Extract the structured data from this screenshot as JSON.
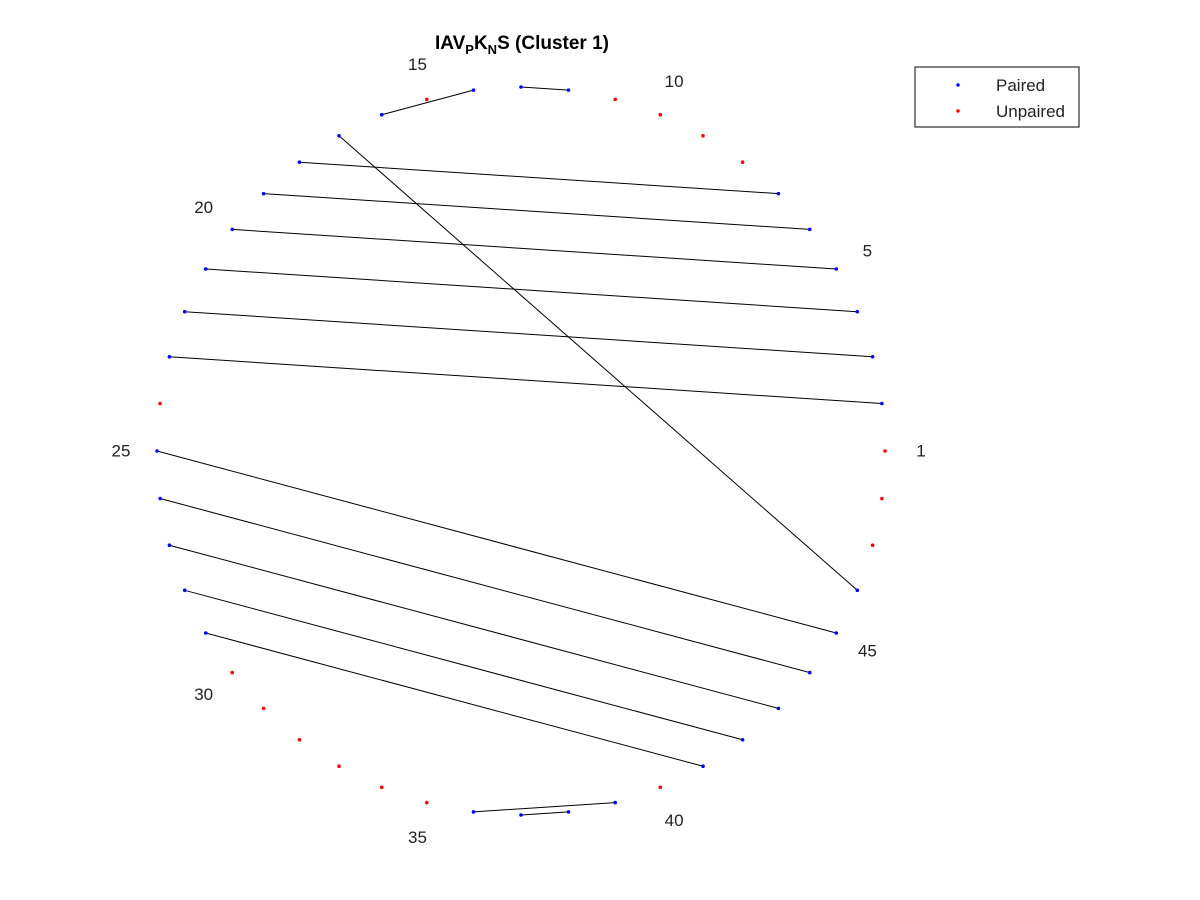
{
  "chart_data": {
    "type": "scatter",
    "title": {
      "parts": [
        {
          "text": "IAV",
          "sub": false
        },
        {
          "text": "P",
          "sub": true
        },
        {
          "text": "K",
          "sub": false
        },
        {
          "text": "N",
          "sub": true
        },
        {
          "text": "S (Cluster 1)",
          "sub": false
        }
      ]
    },
    "layout": "circular",
    "num_positions": 48,
    "position_labels": [
      1,
      5,
      10,
      15,
      20,
      25,
      30,
      35,
      40,
      45
    ],
    "series": [
      {
        "name": "Paired",
        "color": "#0000ff",
        "positions": [
          2,
          3,
          4,
          5,
          6,
          7,
          12,
          13,
          14,
          16,
          17,
          18,
          19,
          20,
          21,
          22,
          23,
          25,
          26,
          27,
          28,
          29,
          36,
          37,
          38,
          39,
          41,
          42,
          43,
          44,
          45,
          46
        ]
      },
      {
        "name": "Unpaired",
        "color": "#ff0000",
        "positions": [
          1,
          8,
          9,
          10,
          11,
          15,
          24,
          30,
          31,
          32,
          33,
          34,
          35,
          40,
          47,
          48
        ]
      }
    ],
    "pairs": [
      [
        2,
        23
      ],
      [
        3,
        22
      ],
      [
        4,
        21
      ],
      [
        5,
        20
      ],
      [
        6,
        19
      ],
      [
        7,
        18
      ],
      [
        12,
        13
      ],
      [
        14,
        16
      ],
      [
        17,
        46
      ],
      [
        25,
        45
      ],
      [
        26,
        44
      ],
      [
        27,
        43
      ],
      [
        28,
        42
      ],
      [
        29,
        41
      ],
      [
        36,
        39
      ],
      [
        37,
        38
      ]
    ],
    "pair_line_color": "#000000",
    "legend": {
      "position": "top-right",
      "entries": [
        "Paired",
        "Unpaired"
      ]
    }
  }
}
